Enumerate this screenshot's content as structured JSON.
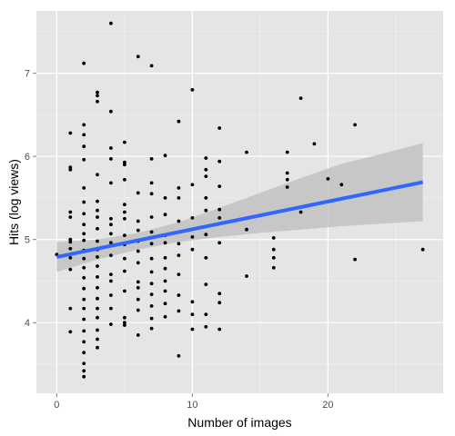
{
  "chart_data": {
    "type": "scatter",
    "xlabel": "Number of images",
    "ylabel": "Hits (log views)",
    "xlim": [
      -1.5,
      28.5
    ],
    "ylim": [
      3.15,
      7.75
    ],
    "x_ticks": [
      0,
      10,
      20
    ],
    "x_minor_ticks": [
      5,
      15,
      25
    ],
    "y_ticks": [
      4,
      5,
      6,
      7
    ],
    "y_minor_ticks": [
      3.5,
      4.5,
      5.5,
      6.5,
      7.5
    ],
    "grid": true,
    "colors": {
      "panel": "#e5e5e5",
      "grid": "#ffffff",
      "points": "#000000",
      "fit_line": "#3366ff",
      "confidence_band": "#c2c2c2"
    },
    "points": [
      [
        0,
        4.82
      ],
      [
        1,
        6.28
      ],
      [
        1,
        5.87
      ],
      [
        1,
        5.84
      ],
      [
        1,
        5.33
      ],
      [
        1,
        5.27
      ],
      [
        1,
        5.0
      ],
      [
        1,
        4.97
      ],
      [
        1,
        4.89
      ],
      [
        1,
        4.78
      ],
      [
        1,
        4.64
      ],
      [
        1,
        4.17
      ],
      [
        1,
        3.89
      ],
      [
        2,
        7.12
      ],
      [
        2,
        6.38
      ],
      [
        2,
        6.26
      ],
      [
        2,
        6.12
      ],
      [
        2,
        5.96
      ],
      [
        2,
        5.62
      ],
      [
        2,
        5.45
      ],
      [
        2,
        5.31
      ],
      [
        2,
        5.18
      ],
      [
        2,
        5.07
      ],
      [
        2,
        4.99
      ],
      [
        2,
        4.87
      ],
      [
        2,
        4.77
      ],
      [
        2,
        4.66
      ],
      [
        2,
        4.54
      ],
      [
        2,
        4.41
      ],
      [
        2,
        4.28
      ],
      [
        2,
        4.17
      ],
      [
        2,
        4.04
      ],
      [
        2,
        3.9
      ],
      [
        2,
        3.77
      ],
      [
        2,
        3.64
      ],
      [
        2,
        3.51
      ],
      [
        2,
        3.42
      ],
      [
        2,
        3.35
      ],
      [
        3,
        6.77
      ],
      [
        3,
        6.73
      ],
      [
        3,
        6.66
      ],
      [
        3,
        5.78
      ],
      [
        3,
        5.46
      ],
      [
        3,
        5.35
      ],
      [
        3,
        5.27
      ],
      [
        3,
        5.13
      ],
      [
        3,
        4.98
      ],
      [
        3,
        4.88
      ],
      [
        3,
        4.79
      ],
      [
        3,
        4.68
      ],
      [
        3,
        4.55
      ],
      [
        3,
        4.42
      ],
      [
        3,
        4.29
      ],
      [
        3,
        4.17
      ],
      [
        3,
        4.06
      ],
      [
        3,
        3.91
      ],
      [
        3,
        3.8
      ],
      [
        3,
        3.7
      ],
      [
        4,
        7.6
      ],
      [
        4,
        6.54
      ],
      [
        4,
        6.1
      ],
      [
        4,
        5.97
      ],
      [
        4,
        5.68
      ],
      [
        4,
        5.25
      ],
      [
        4,
        5.18
      ],
      [
        4,
        5.07
      ],
      [
        4,
        4.96
      ],
      [
        4,
        4.81
      ],
      [
        4,
        4.58
      ],
      [
        4,
        4.5
      ],
      [
        4,
        4.33
      ],
      [
        4,
        4.17
      ],
      [
        4,
        3.98
      ],
      [
        5,
        6.17
      ],
      [
        5,
        5.93
      ],
      [
        5,
        5.9
      ],
      [
        5,
        5.72
      ],
      [
        5,
        5.42
      ],
      [
        5,
        5.33
      ],
      [
        5,
        5.25
      ],
      [
        5,
        5.05
      ],
      [
        5,
        4.94
      ],
      [
        5,
        4.77
      ],
      [
        5,
        4.62
      ],
      [
        5,
        4.38
      ],
      [
        5,
        4.06
      ],
      [
        5,
        4.0
      ],
      [
        5,
        3.97
      ],
      [
        6,
        7.2
      ],
      [
        6,
        5.56
      ],
      [
        6,
        5.22
      ],
      [
        6,
        5.11
      ],
      [
        6,
        4.98
      ],
      [
        6,
        4.86
      ],
      [
        6,
        4.72
      ],
      [
        6,
        4.49
      ],
      [
        6,
        4.42
      ],
      [
        6,
        4.28
      ],
      [
        6,
        4.15
      ],
      [
        6,
        3.85
      ],
      [
        7,
        7.09
      ],
      [
        7,
        5.97
      ],
      [
        7,
        5.68
      ],
      [
        7,
        5.55
      ],
      [
        7,
        5.27
      ],
      [
        7,
        5.09
      ],
      [
        7,
        4.95
      ],
      [
        7,
        4.77
      ],
      [
        7,
        4.61
      ],
      [
        7,
        4.47
      ],
      [
        7,
        4.34
      ],
      [
        7,
        4.2
      ],
      [
        7,
        4.05
      ],
      [
        7,
        3.93
      ],
      [
        8,
        6.01
      ],
      [
        8,
        5.5
      ],
      [
        8,
        5.3
      ],
      [
        8,
        5.05
      ],
      [
        8,
        4.96
      ],
      [
        8,
        4.78
      ],
      [
        8,
        4.65
      ],
      [
        8,
        4.5
      ],
      [
        8,
        4.38
      ],
      [
        8,
        4.23
      ],
      [
        8,
        4.07
      ],
      [
        9,
        6.42
      ],
      [
        9,
        5.62
      ],
      [
        9,
        5.5
      ],
      [
        9,
        5.22
      ],
      [
        9,
        4.95
      ],
      [
        9,
        4.81
      ],
      [
        9,
        4.58
      ],
      [
        9,
        4.33
      ],
      [
        9,
        4.14
      ],
      [
        9,
        3.6
      ],
      [
        10,
        6.8
      ],
      [
        10,
        5.66
      ],
      [
        10,
        5.26
      ],
      [
        10,
        5.03
      ],
      [
        10,
        4.88
      ],
      [
        10,
        4.25
      ],
      [
        10,
        4.1
      ],
      [
        10,
        3.92
      ],
      [
        11,
        5.98
      ],
      [
        11,
        5.84
      ],
      [
        11,
        5.76
      ],
      [
        11,
        5.5
      ],
      [
        11,
        5.35
      ],
      [
        11,
        5.06
      ],
      [
        11,
        4.78
      ],
      [
        11,
        4.46
      ],
      [
        11,
        4.1
      ],
      [
        11,
        3.95
      ],
      [
        12,
        6.34
      ],
      [
        12,
        5.94
      ],
      [
        12,
        5.64
      ],
      [
        12,
        5.36
      ],
      [
        12,
        5.26
      ],
      [
        12,
        4.96
      ],
      [
        12,
        4.35
      ],
      [
        12,
        4.24
      ],
      [
        12,
        3.92
      ],
      [
        14,
        6.05
      ],
      [
        14,
        5.12
      ],
      [
        14,
        4.56
      ],
      [
        16,
        5.02
      ],
      [
        16,
        4.88
      ],
      [
        16,
        4.78
      ],
      [
        16,
        4.66
      ],
      [
        17,
        6.05
      ],
      [
        17,
        5.8
      ],
      [
        17,
        5.72
      ],
      [
        17,
        5.63
      ],
      [
        18,
        6.7
      ],
      [
        18,
        5.33
      ],
      [
        19,
        6.15
      ],
      [
        20,
        5.73
      ],
      [
        21,
        5.66
      ],
      [
        22,
        6.38
      ],
      [
        22,
        4.76
      ],
      [
        27,
        4.88
      ]
    ],
    "fit": {
      "x_start": 0,
      "y_start": 4.79,
      "x_end": 27,
      "y_end": 5.69
    },
    "band": [
      {
        "x": 0,
        "upper": 4.97,
        "lower": 4.61
      },
      {
        "x": 3,
        "upper": 5.0,
        "lower": 4.76
      },
      {
        "x": 6,
        "upper": 5.08,
        "lower": 4.88
      },
      {
        "x": 9,
        "upper": 5.21,
        "lower": 4.97
      },
      {
        "x": 12,
        "upper": 5.38,
        "lower": 5.03
      },
      {
        "x": 15,
        "upper": 5.56,
        "lower": 5.08
      },
      {
        "x": 18,
        "upper": 5.74,
        "lower": 5.12
      },
      {
        "x": 21,
        "upper": 5.91,
        "lower": 5.16
      },
      {
        "x": 24,
        "upper": 6.03,
        "lower": 5.19
      },
      {
        "x": 27,
        "upper": 6.16,
        "lower": 5.22
      }
    ]
  }
}
